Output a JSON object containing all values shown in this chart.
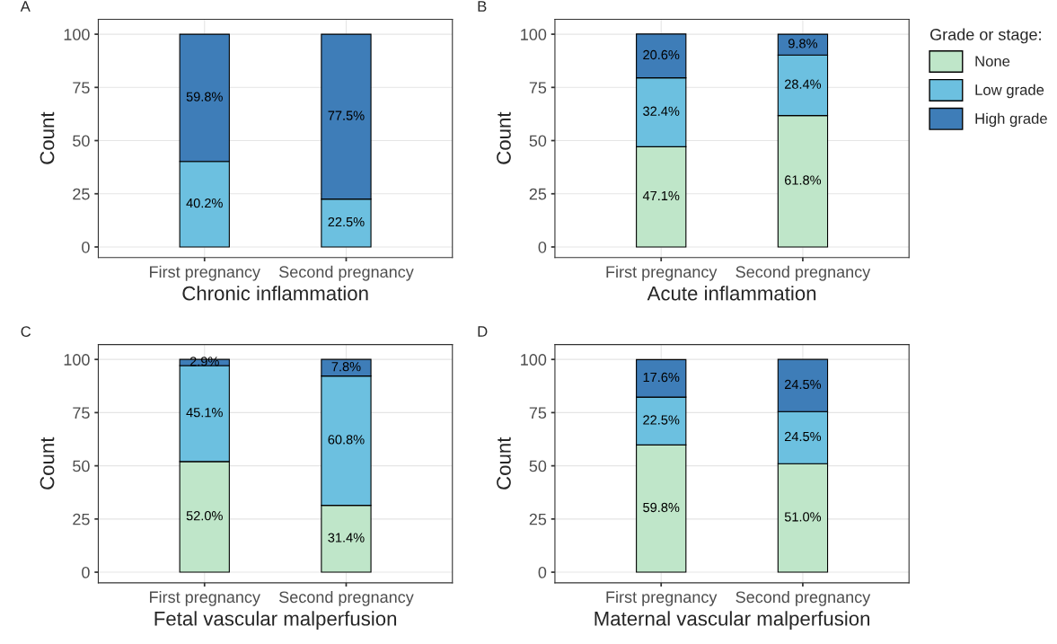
{
  "chart_data": [
    {
      "type": "bar",
      "stacked": true,
      "categories": [
        "First pregnancy",
        "Second pregnancy"
      ],
      "xlabel": "Chronic inflammation",
      "ylabel": "Count",
      "ylim": [
        -5,
        107
      ],
      "yticks": [
        0,
        25,
        50,
        75,
        100
      ],
      "grid": true,
      "legend": false,
      "annotations": [
        "A"
      ],
      "series": [
        {
          "color": "#6cc0e0",
          "values": [
            40.2,
            22.5
          ],
          "value_labels": [
            "40.2%",
            "22.5%"
          ]
        },
        {
          "color": "#3e7db8",
          "values": [
            59.8,
            77.5
          ],
          "value_labels": [
            "59.8%",
            "77.5%"
          ]
        }
      ]
    },
    {
      "type": "bar",
      "stacked": true,
      "categories": [
        "First pregnancy",
        "Second pregnancy"
      ],
      "xlabel": "Acute inflammation",
      "ylabel": "Count",
      "ylim": [
        -5,
        107
      ],
      "yticks": [
        0,
        25,
        50,
        75,
        100
      ],
      "grid": true,
      "legend": "right",
      "legend_title": "Grade or stage:",
      "annotations": [
        "B"
      ],
      "series": [
        {
          "name": "None",
          "color": "#bfe6c9",
          "values": [
            47.1,
            61.8
          ],
          "value_labels": [
            "47.1%",
            "61.8%"
          ]
        },
        {
          "name": "Low grade",
          "color": "#6cc0e0",
          "values": [
            32.4,
            28.4
          ],
          "value_labels": [
            "32.4%",
            "28.4%"
          ]
        },
        {
          "name": "High grade",
          "color": "#3e7db8",
          "values": [
            20.6,
            9.8
          ],
          "value_labels": [
            "20.6%",
            "9.8%"
          ]
        }
      ]
    },
    {
      "type": "bar",
      "stacked": true,
      "categories": [
        "First pregnancy",
        "Second pregnancy"
      ],
      "xlabel": "Fetal vascular malperfusion",
      "ylabel": "Count",
      "ylim": [
        -5,
        107
      ],
      "yticks": [
        0,
        25,
        50,
        75,
        100
      ],
      "grid": true,
      "legend": false,
      "annotations": [
        "C"
      ],
      "series": [
        {
          "color": "#bfe6c9",
          "values": [
            52.0,
            31.4
          ],
          "value_labels": [
            "52.0%",
            "31.4%"
          ]
        },
        {
          "color": "#6cc0e0",
          "values": [
            45.1,
            60.8
          ],
          "value_labels": [
            "45.1%",
            "60.8%"
          ]
        },
        {
          "color": "#3e7db8",
          "values": [
            2.9,
            7.8
          ],
          "value_labels": [
            "2.9%",
            "7.8%"
          ]
        }
      ]
    },
    {
      "type": "bar",
      "stacked": true,
      "categories": [
        "First pregnancy",
        "Second pregnancy"
      ],
      "xlabel": "Maternal vascular malperfusion",
      "ylabel": "Count",
      "ylim": [
        -5,
        107
      ],
      "yticks": [
        0,
        25,
        50,
        75,
        100
      ],
      "grid": true,
      "legend": false,
      "annotations": [
        "D"
      ],
      "series": [
        {
          "color": "#bfe6c9",
          "values": [
            59.8,
            51.0
          ],
          "value_labels": [
            "59.8%",
            "51.0%"
          ]
        },
        {
          "color": "#6cc0e0",
          "values": [
            22.5,
            24.5
          ],
          "value_labels": [
            "22.5%",
            "24.5%"
          ]
        },
        {
          "color": "#3e7db8",
          "values": [
            17.6,
            24.5
          ],
          "value_labels": [
            "17.6%",
            "24.5%"
          ]
        }
      ]
    }
  ]
}
